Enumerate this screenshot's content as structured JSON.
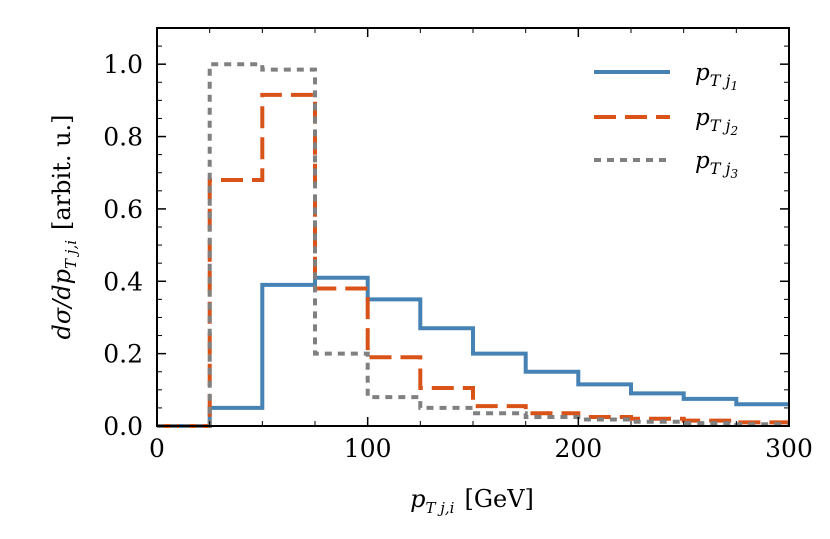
{
  "chart_data": {
    "type": "line",
    "title": "",
    "xlabel": "p_{T j,i} [GeV]",
    "xlabel_var": "p",
    "xlabel_sub": "T j,i",
    "xlabel_unit": "[GeV]",
    "ylabel": "dσ/dp_{T j,i} [arbit. u.]",
    "ylabel_var": "dσ/dp",
    "ylabel_sub": "T j,i",
    "ylabel_unit": "[arbit. u.]",
    "xlim": [
      0,
      300
    ],
    "ylim": [
      0,
      1.1
    ],
    "xticks": [
      0,
      100,
      200,
      300
    ],
    "xtick_labels": [
      "0",
      "100",
      "200",
      "300"
    ],
    "yticks": [
      0.0,
      0.2,
      0.4,
      0.6,
      0.8,
      1.0
    ],
    "ytick_labels": [
      "0.0",
      "0.2",
      "0.4",
      "0.6",
      "0.8",
      "1.0"
    ],
    "grid": false,
    "legend_position": "top-right",
    "bin_edges": [
      0,
      25,
      50,
      75,
      100,
      125,
      150,
      175,
      200,
      225,
      250,
      275,
      300
    ],
    "series": [
      {
        "name": "p_{T j1}",
        "label_main": "p",
        "label_sub": "T j",
        "label_subsub": "1",
        "color": "#4682b4",
        "dash": "solid",
        "values": [
          0.0,
          0.05,
          0.39,
          0.41,
          0.35,
          0.27,
          0.2,
          0.15,
          0.115,
          0.09,
          0.075,
          0.06
        ]
      },
      {
        "name": "p_{T j2}",
        "label_main": "p",
        "label_sub": "T j",
        "label_subsub": "2",
        "color": "#d95319",
        "dash": "dashed",
        "values": [
          0.0,
          0.68,
          0.915,
          0.38,
          0.19,
          0.105,
          0.055,
          0.035,
          0.025,
          0.02,
          0.015,
          0.01
        ]
      },
      {
        "name": "p_{T j3}",
        "label_main": "p",
        "label_sub": "T j",
        "label_subsub": "3",
        "color": "#808080",
        "dash": "dotted",
        "values": [
          0.0,
          1.0,
          0.985,
          0.2,
          0.08,
          0.05,
          0.035,
          0.025,
          0.018,
          0.012,
          0.008,
          0.005
        ]
      }
    ]
  }
}
